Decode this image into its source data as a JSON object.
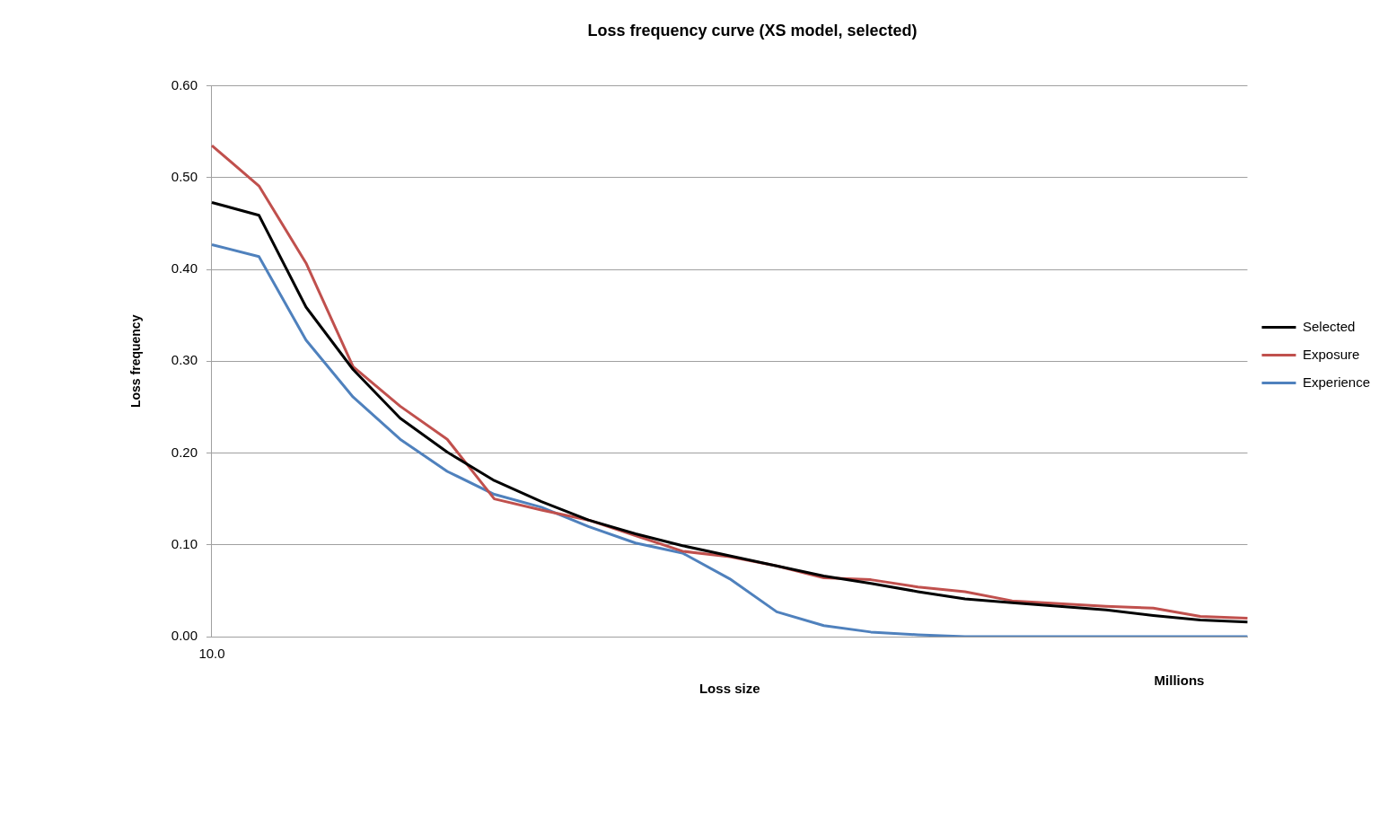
{
  "chart_data": {
    "type": "line",
    "title": "Loss frequency curve (XS model, selected)",
    "xlabel": "Loss size",
    "ylabel": "Loss frequency",
    "annotations": [
      "Millions"
    ],
    "categories": [
      "10.0",
      null,
      null,
      null,
      null,
      null,
      null,
      null,
      null,
      null,
      null,
      null,
      null,
      null,
      null,
      null,
      null,
      null,
      null,
      null,
      null,
      null,
      null
    ],
    "series": [
      {
        "name": "Selected",
        "color": "#000000",
        "values": [
          0.473,
          0.459,
          0.359,
          0.291,
          0.238,
          0.201,
          0.17,
          0.147,
          0.127,
          0.112,
          0.099,
          0.088,
          0.077,
          0.066,
          0.058,
          0.049,
          0.041,
          0.037,
          0.033,
          0.029,
          0.023,
          0.018,
          0.016
        ]
      },
      {
        "name": "Exposure",
        "color": "#c0504d",
        "values": [
          0.535,
          0.491,
          0.407,
          0.294,
          0.251,
          0.215,
          0.15,
          0.138,
          0.127,
          0.11,
          0.093,
          0.087,
          0.077,
          0.064,
          0.062,
          0.054,
          0.049,
          0.039,
          0.036,
          0.033,
          0.031,
          0.022,
          0.02
        ]
      },
      {
        "name": "Experience",
        "color": "#4f81bd",
        "values": [
          0.427,
          0.414,
          0.323,
          0.261,
          0.215,
          0.18,
          0.155,
          0.141,
          0.12,
          0.102,
          0.091,
          0.063,
          0.027,
          0.012,
          0.005,
          0.002,
          0,
          0,
          0,
          0,
          0,
          0,
          0
        ]
      }
    ],
    "ylim": [
      0,
      0.6
    ],
    "yticks": [
      {
        "value": 0,
        "label": "0.00"
      },
      {
        "value": 0.1,
        "label": "0.10"
      },
      {
        "value": 0.2,
        "label": "0.20"
      },
      {
        "value": 0.3,
        "label": "0.30"
      },
      {
        "value": 0.4,
        "label": "0.40"
      },
      {
        "value": 0.5,
        "label": "0.50"
      },
      {
        "value": 0.6,
        "label": "0.60"
      }
    ],
    "grid": "y",
    "legend": "right",
    "marker": "none",
    "line_style": "solid"
  }
}
